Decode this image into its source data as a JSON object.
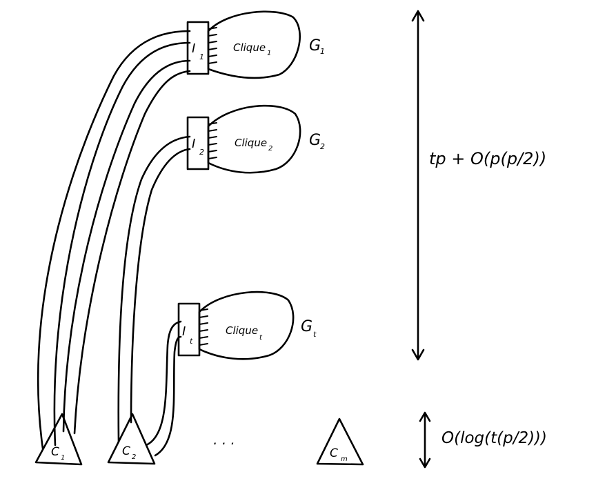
{
  "gadgets": [
    {
      "graph_label": "G",
      "graph_sub": "1",
      "clique_label": "Clique",
      "clique_sub": "1",
      "interface_label": "I",
      "interface_sub": "1"
    },
    {
      "graph_label": "G",
      "graph_sub": "2",
      "clique_label": "Clique",
      "clique_sub": "2",
      "interface_label": "I",
      "interface_sub": "2"
    },
    {
      "graph_label": "G",
      "graph_sub": "t",
      "clique_label": "Clique",
      "clique_sub": "t",
      "interface_label": "I",
      "interface_sub": "t"
    }
  ],
  "clauses": [
    {
      "label": "C",
      "sub": "1"
    },
    {
      "label": "C",
      "sub": "2"
    },
    {
      "label": "C",
      "sub": "m"
    }
  ],
  "ellipsis": "· · ·",
  "height_labels": {
    "upper": "tp + O(p(p/2))",
    "lower": "O(log(t(p/2)))"
  }
}
